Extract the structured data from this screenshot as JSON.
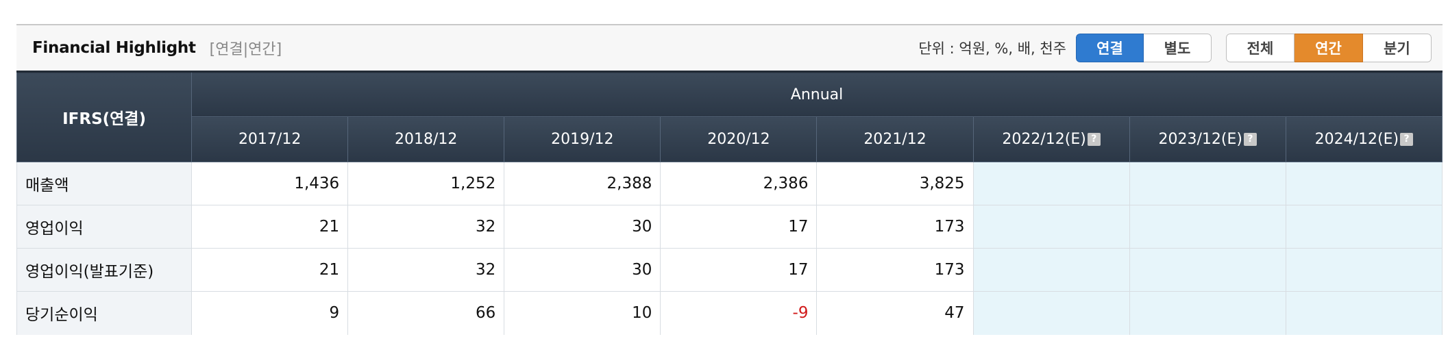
{
  "header": {
    "title": "Financial Highlight",
    "subtitle": "[연결|연간]",
    "unit_label": "단위 : 억원, %, 배, 천주"
  },
  "toggle_scope": {
    "options": [
      "연결",
      "별도"
    ],
    "selected": "연결"
  },
  "toggle_period": {
    "options": [
      "전체",
      "연간",
      "분기"
    ],
    "selected": "연간"
  },
  "colors": {
    "active_blue": "#2f7bd0",
    "active_orange": "#e48a2c",
    "header_dark": "#2f3b4a",
    "estimate_bg": "#e7f5fa",
    "negative": "#d11a1a"
  },
  "table": {
    "corner_label": "IFRS(연결)",
    "group_label": "Annual",
    "columns": [
      "2017/12",
      "2018/12",
      "2019/12",
      "2020/12",
      "2021/12",
      "2022/12(E)",
      "2023/12(E)",
      "2024/12(E)"
    ],
    "help_icon": "?",
    "rows": [
      {
        "label": "매출액",
        "values": [
          "1,436",
          "1,252",
          "2,388",
          "2,386",
          "3,825",
          "",
          "",
          ""
        ]
      },
      {
        "label": "영업이익",
        "values": [
          "21",
          "32",
          "30",
          "17",
          "173",
          "",
          "",
          ""
        ]
      },
      {
        "label": "영업이익(발표기준)",
        "values": [
          "21",
          "32",
          "30",
          "17",
          "173",
          "",
          "",
          ""
        ]
      },
      {
        "label": "당기순이익",
        "values": [
          "9",
          "66",
          "10",
          "-9",
          "47",
          "",
          "",
          ""
        ]
      }
    ]
  }
}
